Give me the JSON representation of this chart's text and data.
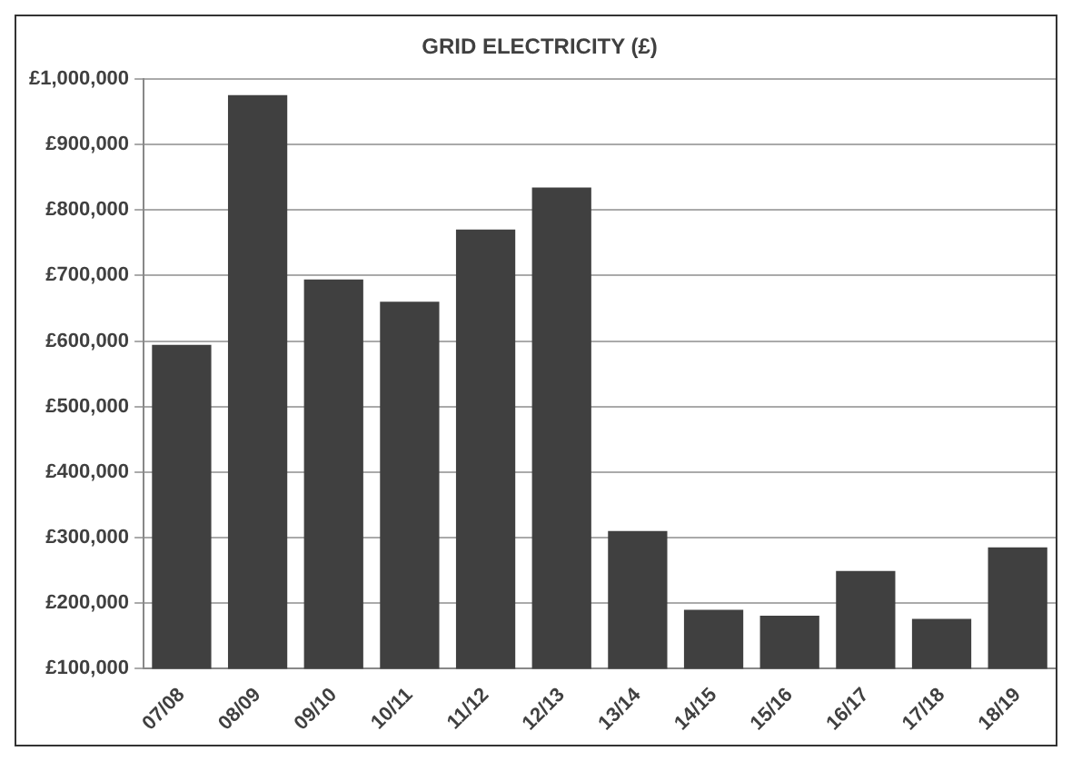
{
  "chart_data": {
    "type": "bar",
    "title": "GRID ELECTRICITY (£)",
    "categories": [
      "07/08",
      "08/09",
      "09/10",
      "10/11",
      "11/12",
      "12/13",
      "13/14",
      "14/15",
      "15/16",
      "16/17",
      "17/18",
      "18/19"
    ],
    "values": [
      594000,
      975000,
      694000,
      660000,
      770000,
      834000,
      310000,
      190000,
      181000,
      249000,
      176000,
      285000
    ],
    "color": "#404040",
    "ylim": [
      100000,
      1000000
    ],
    "yticks": [
      {
        "value": 100000,
        "label": "£100,000"
      },
      {
        "value": 200000,
        "label": "£200,000"
      },
      {
        "value": 300000,
        "label": "£300,000"
      },
      {
        "value": 400000,
        "label": "£400,000"
      },
      {
        "value": 500000,
        "label": "£500,000"
      },
      {
        "value": 600000,
        "label": "£600,000"
      },
      {
        "value": 700000,
        "label": "£700,000"
      },
      {
        "value": 800000,
        "label": "£800,000"
      },
      {
        "value": 900000,
        "label": "£900,000"
      },
      {
        "value": 1000000,
        "label": "£1,000,000"
      }
    ],
    "grid": "y"
  }
}
